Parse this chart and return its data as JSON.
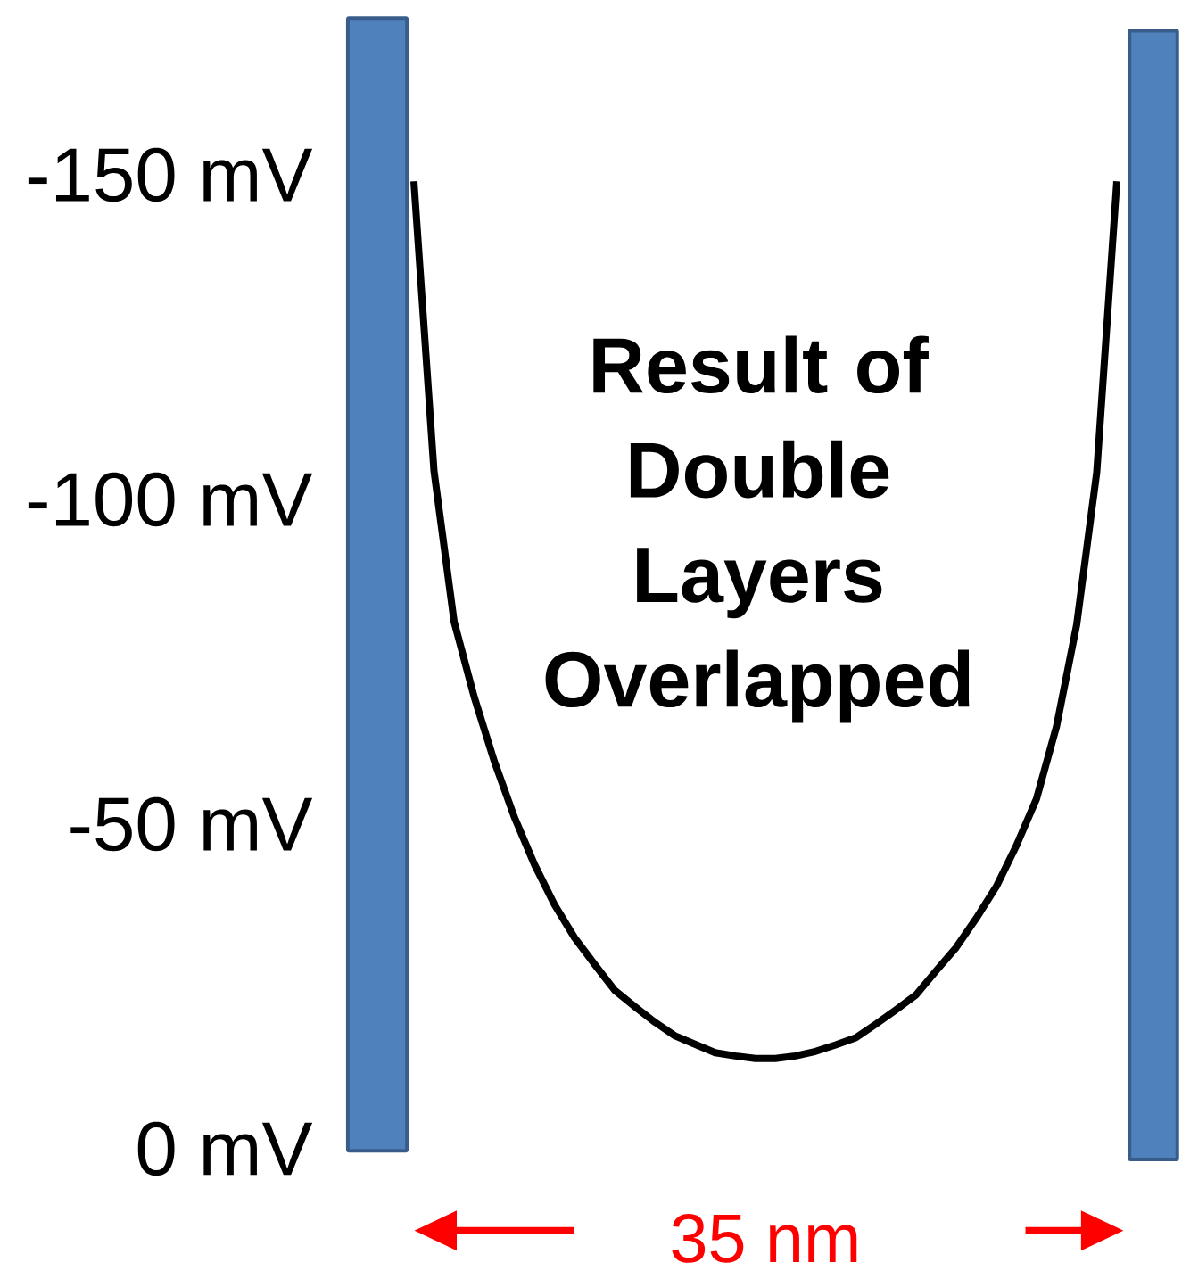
{
  "chart_data": {
    "type": "line",
    "annotations": [
      "Result of Double Layers Overlapped",
      "35 nm"
    ],
    "categories": [
      null,
      null,
      null,
      null,
      null,
      null,
      null,
      null,
      null,
      null,
      null,
      null,
      null,
      null,
      null,
      null,
      null,
      null,
      null,
      null,
      null,
      null,
      null,
      null,
      null,
      null,
      null,
      null,
      null,
      null,
      null,
      null,
      null,
      null,
      null,
      null
    ],
    "series": [
      {
        "color": "#000000",
        "values": [
          -149,
          -104.4,
          -81.2,
          -69.6,
          -59.7,
          -51.1,
          -43.8,
          -37.6,
          -32.5,
          -28.4,
          -24.4,
          -21.9,
          -19.5,
          -17.4,
          -16.1,
          -14.8,
          -14.3,
          -13.9,
          -13.9,
          -14.3,
          -15.0,
          -16.0,
          -17.1,
          -19.2,
          -21.4,
          -23.7,
          -27.4,
          -31.0,
          -35.5,
          -40.4,
          -46.7,
          -53.9,
          -65.1,
          -80.7,
          -104.2,
          -149
        ]
      }
    ],
    "ylim": [
      0,
      -150
    ],
    "yticks": [
      {
        "value": 0,
        "label": "0 mV"
      },
      {
        "value": -50,
        "label": "-50 mV"
      },
      {
        "value": -100,
        "label": "-100 mV"
      },
      {
        "value": -150,
        "label": "-150 mV"
      }
    ],
    "tick_labels": "y",
    "grid": false,
    "marker": "none",
    "line_style": "solid"
  }
}
